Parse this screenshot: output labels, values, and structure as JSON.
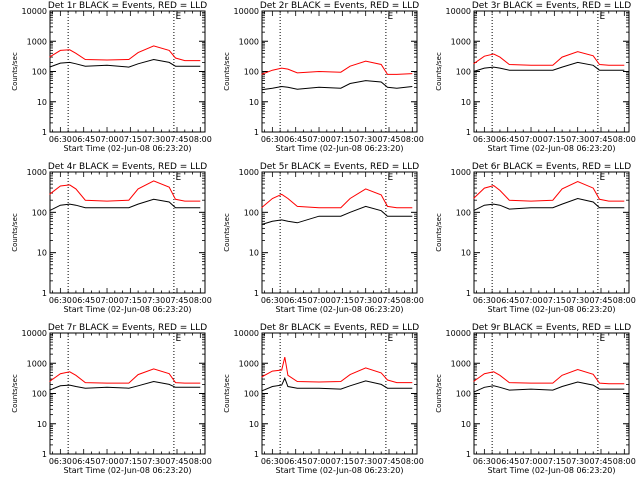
{
  "chart_data": [
    {
      "type": "line",
      "title": "Det 1r BLACK = Events, RED = LLD",
      "xlabel": "Start Time (02-Jun-08 06:23:20)",
      "ylabel": "Counts/sec",
      "yscale": "log",
      "ylim": [
        1,
        10000
      ],
      "yticks": [
        "1",
        "10",
        "100",
        "1000",
        "10000"
      ],
      "xticks": [
        "06:30",
        "06:45",
        "07:00",
        "07:15",
        "07:30",
        "07:45",
        "08:00"
      ],
      "xlim": [
        "06:23:20",
        "08:03:00"
      ],
      "vlines": [
        "06:35:00",
        "07:43:00"
      ],
      "marker_label": "E",
      "marker_time": "07:44:00",
      "x": [
        "06:23",
        "06:30",
        "06:36",
        "06:40",
        "06:46",
        "07:00",
        "07:14",
        "07:20",
        "07:30",
        "07:40",
        "07:44",
        "07:50",
        "08:00"
      ],
      "series": [
        {
          "name": "Events",
          "color": "#000000",
          "values": [
            140,
            190,
            200,
            180,
            150,
            160,
            140,
            180,
            250,
            200,
            150,
            150,
            150
          ]
        },
        {
          "name": "LLD",
          "color": "#ff0000",
          "values": [
            300,
            500,
            520,
            400,
            250,
            240,
            250,
            420,
            700,
            500,
            280,
            230,
            230
          ]
        }
      ]
    },
    {
      "type": "line",
      "title": "Det 2r BLACK = Events, RED = LLD",
      "xlabel": "Start Time (02-Jun-08 06:23:20)",
      "ylabel": "Counts/sec",
      "yscale": "log",
      "ylim": [
        1,
        10000
      ],
      "yticks": [
        "1",
        "10",
        "100",
        "1000",
        "10000"
      ],
      "xticks": [
        "06:30",
        "06:45",
        "07:00",
        "07:15",
        "07:30",
        "07:45",
        "08:00"
      ],
      "xlim": [
        "06:23:20",
        "08:03:00"
      ],
      "vlines": [
        "06:35:00",
        "07:43:00"
      ],
      "marker_label": "E",
      "marker_time": "07:44:00",
      "x": [
        "06:23",
        "06:30",
        "06:36",
        "06:40",
        "06:46",
        "07:00",
        "07:14",
        "07:20",
        "07:30",
        "07:40",
        "07:44",
        "07:50",
        "08:00"
      ],
      "series": [
        {
          "name": "Events",
          "color": "#000000",
          "values": [
            25,
            28,
            32,
            30,
            26,
            30,
            28,
            40,
            50,
            45,
            30,
            28,
            32
          ]
        },
        {
          "name": "LLD",
          "color": "#ff0000",
          "values": [
            80,
            110,
            130,
            120,
            90,
            100,
            95,
            150,
            220,
            170,
            80,
            80,
            85
          ]
        }
      ]
    },
    {
      "type": "line",
      "title": "Det 3r BLACK = Events, RED = LLD",
      "xlabel": "Start Time (02-Jun-08 06:23:20)",
      "ylabel": "Counts/sec",
      "yscale": "log",
      "ylim": [
        1,
        10000
      ],
      "yticks": [
        "1",
        "10",
        "100",
        "1000",
        "10000"
      ],
      "xticks": [
        "06:30",
        "06:45",
        "07:00",
        "07:15",
        "07:30",
        "07:45",
        "08:00"
      ],
      "xlim": [
        "06:23:20",
        "08:03:00"
      ],
      "vlines": [
        "06:35:00",
        "07:43:00"
      ],
      "marker_label": "E",
      "marker_time": "07:44:00",
      "x": [
        "06:23",
        "06:30",
        "06:36",
        "06:40",
        "06:46",
        "07:00",
        "07:14",
        "07:20",
        "07:30",
        "07:40",
        "07:44",
        "07:50",
        "08:00"
      ],
      "series": [
        {
          "name": "Events",
          "color": "#000000",
          "values": [
            100,
            130,
            140,
            130,
            110,
            110,
            110,
            140,
            200,
            160,
            110,
            110,
            110
          ]
        },
        {
          "name": "LLD",
          "color": "#ff0000",
          "values": [
            180,
            320,
            380,
            300,
            170,
            160,
            160,
            300,
            450,
            330,
            170,
            160,
            160
          ]
        }
      ]
    },
    {
      "type": "line",
      "title": "Det 4r BLACK = Events, RED = LLD",
      "xlabel": "Start Time (02-Jun-08 06:23:20)",
      "ylabel": "Counts/sec",
      "yscale": "log",
      "ylim": [
        1,
        1000
      ],
      "yticks": [
        "1",
        "10",
        "100",
        "1000"
      ],
      "xticks": [
        "06:30",
        "06:45",
        "07:00",
        "07:15",
        "07:30",
        "07:45",
        "08:00"
      ],
      "xlim": [
        "06:23:20",
        "08:03:00"
      ],
      "vlines": [
        "06:35:00",
        "07:43:00"
      ],
      "marker_label": "E",
      "marker_time": "07:44:00",
      "x": [
        "06:23",
        "06:30",
        "06:36",
        "06:40",
        "06:46",
        "07:00",
        "07:14",
        "07:20",
        "07:30",
        "07:40",
        "07:44",
        "07:50",
        "08:00"
      ],
      "series": [
        {
          "name": "Events",
          "color": "#000000",
          "values": [
            110,
            150,
            160,
            150,
            130,
            130,
            130,
            160,
            210,
            180,
            130,
            130,
            130
          ]
        },
        {
          "name": "LLD",
          "color": "#ff0000",
          "values": [
            280,
            450,
            480,
            380,
            200,
            190,
            200,
            380,
            600,
            420,
            210,
            190,
            190
          ]
        }
      ]
    },
    {
      "type": "line",
      "title": "Det 5r BLACK = Events, RED = LLD",
      "xlabel": "Start Time (02-Jun-08 06:23:20)",
      "ylabel": "Counts/sec",
      "yscale": "log",
      "ylim": [
        1,
        1000
      ],
      "yticks": [
        "1",
        "10",
        "100",
        "1000"
      ],
      "xticks": [
        "06:30",
        "06:45",
        "07:00",
        "07:15",
        "07:30",
        "07:45",
        "08:00"
      ],
      "xlim": [
        "06:23:20",
        "08:03:00"
      ],
      "vlines": [
        "06:35:00",
        "07:43:00"
      ],
      "marker_label": "E",
      "marker_time": "07:44:00",
      "x": [
        "06:23",
        "06:30",
        "06:36",
        "06:40",
        "06:46",
        "07:00",
        "07:14",
        "07:20",
        "07:30",
        "07:40",
        "07:44",
        "07:50",
        "08:00"
      ],
      "series": [
        {
          "name": "Events",
          "color": "#000000",
          "values": [
            50,
            60,
            65,
            60,
            55,
            80,
            80,
            100,
            140,
            110,
            80,
            80,
            80
          ]
        },
        {
          "name": "LLD",
          "color": "#ff0000",
          "values": [
            130,
            220,
            280,
            220,
            140,
            130,
            130,
            220,
            380,
            270,
            140,
            130,
            130
          ]
        }
      ]
    },
    {
      "type": "line",
      "title": "Det 6r BLACK = Events, RED = LLD",
      "xlabel": "Start Time (02-Jun-08 06:23:20)",
      "ylabel": "Counts/sec",
      "yscale": "log",
      "ylim": [
        1,
        1000
      ],
      "yticks": [
        "1",
        "10",
        "100",
        "1000"
      ],
      "xticks": [
        "06:30",
        "06:45",
        "07:00",
        "07:15",
        "07:30",
        "07:45",
        "08:00"
      ],
      "xlim": [
        "06:23:20",
        "08:03:00"
      ],
      "vlines": [
        "06:35:00",
        "07:43:00"
      ],
      "marker_label": "E",
      "marker_time": "07:44:00",
      "x": [
        "06:23",
        "06:30",
        "06:36",
        "06:40",
        "06:46",
        "07:00",
        "07:14",
        "07:20",
        "07:30",
        "07:40",
        "07:44",
        "07:50",
        "08:00"
      ],
      "series": [
        {
          "name": "Events",
          "color": "#000000",
          "values": [
            110,
            150,
            160,
            150,
            120,
            130,
            130,
            160,
            220,
            180,
            130,
            130,
            130
          ]
        },
        {
          "name": "LLD",
          "color": "#ff0000",
          "values": [
            220,
            400,
            460,
            350,
            200,
            190,
            200,
            380,
            580,
            400,
            210,
            190,
            190
          ]
        }
      ]
    },
    {
      "type": "line",
      "title": "Det 7r BLACK = Events, RED = LLD",
      "xlabel": "Start Time (02-Jun-08 06:23:20)",
      "ylabel": "Counts/sec",
      "yscale": "log",
      "ylim": [
        1,
        10000
      ],
      "yticks": [
        "1",
        "10",
        "100",
        "1000",
        "10000"
      ],
      "xticks": [
        "06:30",
        "06:45",
        "07:00",
        "07:15",
        "07:30",
        "07:45",
        "08:00"
      ],
      "xlim": [
        "06:23:20",
        "08:03:00"
      ],
      "vlines": [
        "06:35:00",
        "07:43:00"
      ],
      "marker_label": "E",
      "marker_time": "07:44:00",
      "x": [
        "06:23",
        "06:30",
        "06:36",
        "06:40",
        "06:46",
        "07:00",
        "07:14",
        "07:20",
        "07:30",
        "07:40",
        "07:44",
        "07:50",
        "08:00"
      ],
      "series": [
        {
          "name": "Events",
          "color": "#000000",
          "values": [
            130,
            180,
            190,
            170,
            150,
            160,
            150,
            180,
            250,
            200,
            160,
            160,
            160
          ]
        },
        {
          "name": "LLD",
          "color": "#ff0000",
          "values": [
            250,
            450,
            520,
            400,
            230,
            220,
            220,
            420,
            650,
            450,
            230,
            220,
            220
          ]
        }
      ]
    },
    {
      "type": "line",
      "title": "Det 8r BLACK = Events, RED = LLD",
      "xlabel": "Start Time (02-Jun-08 06:23:20)",
      "ylabel": "Counts/sec",
      "yscale": "log",
      "ylim": [
        1,
        10000
      ],
      "yticks": [
        "1",
        "10",
        "100",
        "1000",
        "10000"
      ],
      "xticks": [
        "06:30",
        "06:45",
        "07:00",
        "07:15",
        "07:30",
        "07:45",
        "08:00"
      ],
      "xlim": [
        "06:23:20",
        "08:03:00"
      ],
      "vlines": [
        "06:35:00",
        "07:43:00"
      ],
      "marker_label": "E",
      "marker_time": "07:44:00",
      "x": [
        "06:23",
        "06:30",
        "06:36",
        "06:38",
        "06:40",
        "06:46",
        "07:00",
        "07:14",
        "07:20",
        "07:30",
        "07:40",
        "07:44",
        "07:50",
        "08:00"
      ],
      "series": [
        {
          "name": "Events",
          "color": "#000000",
          "values": [
            120,
            170,
            190,
            320,
            170,
            150,
            150,
            140,
            180,
            260,
            200,
            150,
            150,
            150
          ]
        },
        {
          "name": "LLD",
          "color": "#ff0000",
          "values": [
            350,
            550,
            600,
            1600,
            400,
            250,
            240,
            250,
            420,
            700,
            480,
            280,
            230,
            230
          ]
        }
      ]
    },
    {
      "type": "line",
      "title": "Det 9r BLACK = Events, RED = LLD",
      "xlabel": "Start Time (02-Jun-08 06:23:20)",
      "ylabel": "Counts/sec",
      "yscale": "log",
      "ylim": [
        1,
        10000
      ],
      "yticks": [
        "1",
        "10",
        "100",
        "1000",
        "10000"
      ],
      "xticks": [
        "06:30",
        "06:45",
        "07:00",
        "07:15",
        "07:30",
        "07:45",
        "08:00"
      ],
      "xlim": [
        "06:23:20",
        "08:03:00"
      ],
      "vlines": [
        "06:35:00",
        "07:43:00"
      ],
      "marker_label": "E",
      "marker_time": "07:44:00",
      "x": [
        "06:23",
        "06:30",
        "06:36",
        "06:40",
        "06:46",
        "07:00",
        "07:14",
        "07:20",
        "07:30",
        "07:40",
        "07:44",
        "07:50",
        "08:00"
      ],
      "series": [
        {
          "name": "Events",
          "color": "#000000",
          "values": [
            110,
            160,
            180,
            160,
            130,
            140,
            130,
            170,
            240,
            190,
            140,
            140,
            140
          ]
        },
        {
          "name": "LLD",
          "color": "#ff0000",
          "values": [
            250,
            450,
            520,
            400,
            230,
            220,
            220,
            400,
            620,
            430,
            220,
            210,
            210
          ]
        }
      ]
    }
  ]
}
